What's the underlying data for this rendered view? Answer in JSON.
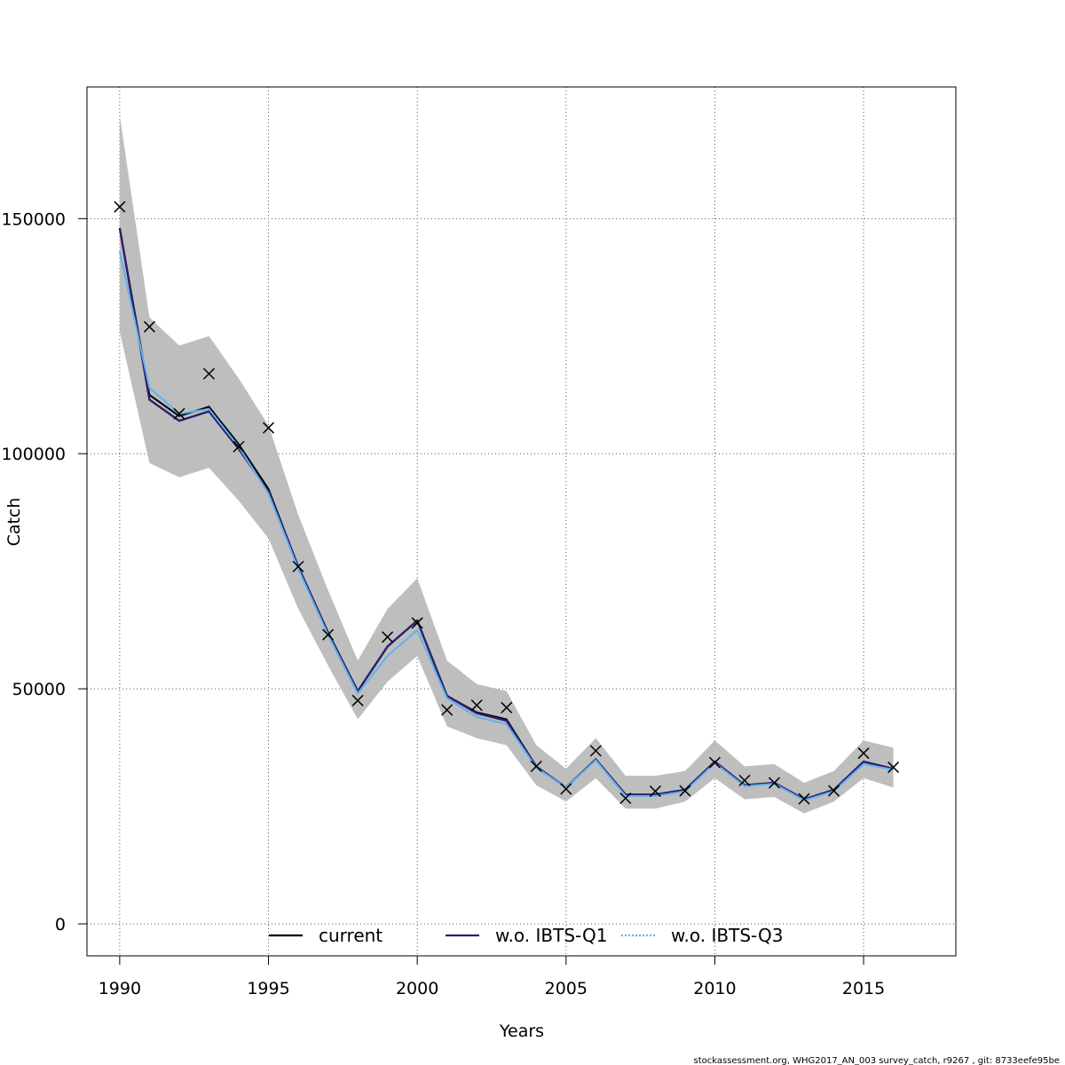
{
  "chart_data": {
    "type": "line",
    "xlabel": "Years",
    "ylabel": "Catch",
    "xlim": [
      1988.9,
      2018.1
    ],
    "ylim": [
      -6800,
      178000
    ],
    "x_ticks": [
      1990,
      1995,
      2000,
      2005,
      2010,
      2015
    ],
    "x_tick_labels": [
      "1990",
      "1995",
      "2000",
      "2005",
      "2010",
      "2015"
    ],
    "y_ticks": [
      0,
      50000,
      100000,
      150000
    ],
    "y_tick_labels": [
      "0",
      "50000",
      "100000",
      "150000"
    ],
    "grid": true,
    "legend_position": "bottom-center",
    "x": [
      1990,
      1991,
      1992,
      1993,
      1994,
      1995,
      1996,
      1997,
      1998,
      1999,
      2000,
      2001,
      2002,
      2003,
      2004,
      2005,
      2006,
      2007,
      2008,
      2009,
      2010,
      2011,
      2012,
      2013,
      2014,
      2015,
      2016
    ],
    "band": {
      "color": "#bebebe",
      "upper": [
        172000,
        129000,
        123000,
        125000,
        116000,
        106000,
        87000,
        71000,
        56000,
        67000,
        73500,
        56000,
        51000,
        49500,
        38000,
        33000,
        39500,
        31500,
        31500,
        32500,
        39000,
        33500,
        34000,
        30000,
        32500,
        39000,
        37500
      ],
      "lower": [
        126000,
        98000,
        95000,
        97000,
        90000,
        82000,
        67000,
        55000,
        43500,
        51500,
        57000,
        42000,
        39500,
        38000,
        29500,
        26000,
        31000,
        24500,
        24500,
        26000,
        31000,
        26500,
        27000,
        23500,
        26000,
        31000,
        29000
      ]
    },
    "series": [
      {
        "name": "current",
        "color": "#000000",
        "style": "solid",
        "values": [
          148000,
          112500,
          108000,
          110000,
          102000,
          92500,
          76000,
          62000,
          49500,
          59000,
          64500,
          48500,
          45000,
          43500,
          33500,
          29000,
          35000,
          27500,
          27500,
          28500,
          34500,
          29500,
          30000,
          26500,
          28500,
          34500,
          33000
        ]
      },
      {
        "name": "w.o. IBTS-Q1",
        "color": "#2c1f6b",
        "style": "solid",
        "values": [
          148000,
          111500,
          107000,
          109000,
          101000,
          92000,
          76000,
          62000,
          49500,
          59000,
          64500,
          48500,
          44800,
          43200,
          33400,
          29000,
          35000,
          27500,
          27500,
          28500,
          34500,
          29500,
          30000,
          26500,
          28500,
          34500,
          33000
        ]
      },
      {
        "name": "w.o. IBTS-Q3",
        "color": "#5fb2ee",
        "style": "dotted",
        "values": [
          143000,
          114000,
          108500,
          109500,
          101500,
          91500,
          75500,
          61500,
          49000,
          57000,
          62500,
          48000,
          44000,
          42500,
          33200,
          29000,
          34800,
          27200,
          27200,
          28200,
          34200,
          29300,
          29800,
          26300,
          28200,
          34000,
          32800
        ]
      }
    ],
    "observations": {
      "marker": "x",
      "color": "#000000",
      "values": [
        152500,
        127000,
        108500,
        117000,
        101500,
        105500,
        76000,
        61500,
        47500,
        61000,
        64000,
        45500,
        46500,
        46000,
        33500,
        28700,
        36800,
        26700,
        28200,
        28300,
        34300,
        30500,
        30000,
        26600,
        28300,
        36300,
        33300
      ]
    }
  },
  "footer": {
    "text": "stockassessment.org, WHG2017_AN_003 survey_catch, r9267 , git: 8733eefe95be"
  }
}
